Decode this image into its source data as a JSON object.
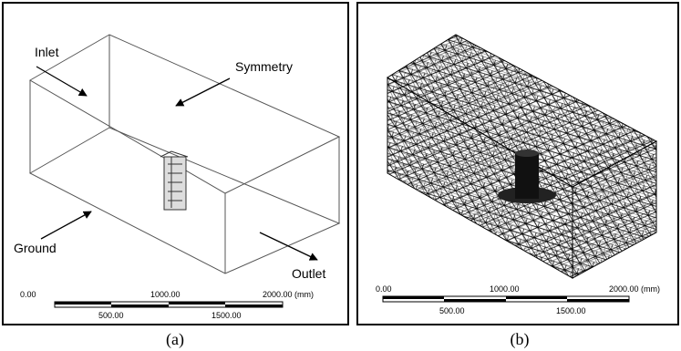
{
  "panels": [
    {
      "caption": "(a)",
      "labels": [
        "Inlet",
        "Symmetry",
        "Ground",
        "Outlet"
      ],
      "scale": {
        "top": [
          "0.00",
          "1000.00",
          "2000.00 (mm)"
        ],
        "bottom": [
          "500.00",
          "1500.00"
        ]
      }
    },
    {
      "caption": "(b)",
      "scale": {
        "top": [
          "0.00",
          "1000.00",
          "2000.00 (mm)"
        ],
        "bottom": [
          "500.00",
          "1500.00"
        ]
      }
    }
  ]
}
